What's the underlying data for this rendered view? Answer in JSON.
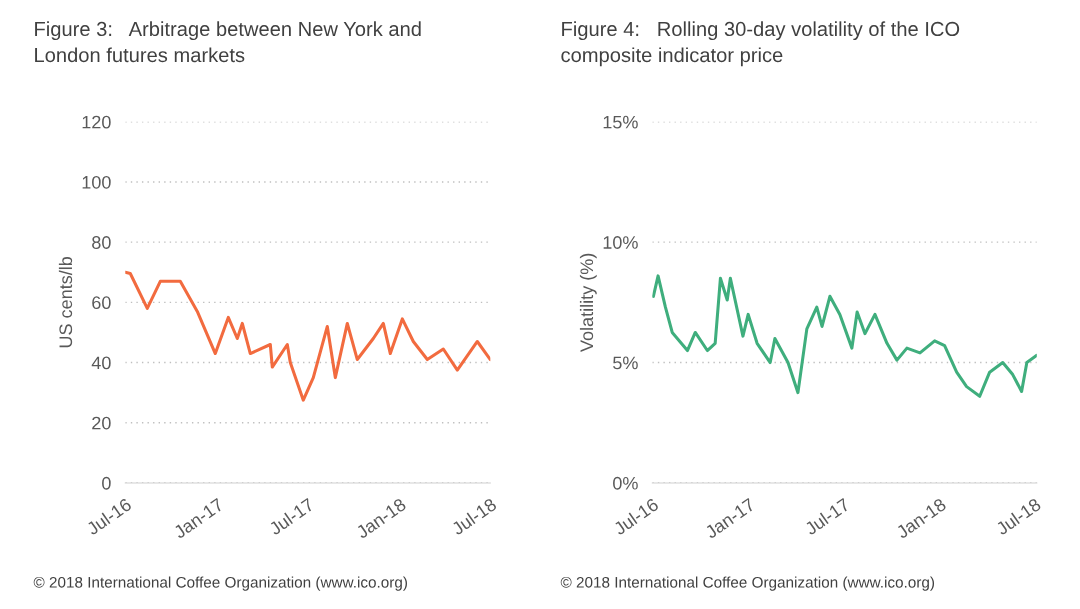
{
  "chart_data": [
    {
      "type": "line",
      "title": "Figure 3:   Arbitrage between New York and London futures markets",
      "ylabel": "US cents/lb",
      "series": [
        {
          "color": "#f26b3f",
          "x": [
            "2016-07-01",
            "2016-07-11",
            "2016-08-14",
            "2016-09-09",
            "2016-10-19",
            "2016-11-22",
            "2016-12-28",
            "2017-01-23",
            "2017-02-10",
            "2017-02-20",
            "2017-03-08",
            "2017-04-17",
            "2017-04-21",
            "2017-05-21",
            "2017-05-27",
            "2017-06-22",
            "2017-07-12",
            "2017-08-09",
            "2017-08-25",
            "2017-09-18",
            "2017-10-08",
            "2017-11-09",
            "2017-11-29",
            "2017-12-13",
            "2018-01-06",
            "2018-01-28",
            "2018-02-25",
            "2018-03-29",
            "2018-04-26",
            "2018-06-05",
            "2018-07-01"
          ],
          "values": [
            70,
            69.6,
            58,
            67,
            67,
            57,
            43,
            55,
            48,
            53,
            43,
            46,
            38.5,
            46,
            40,
            27.5,
            35,
            52,
            35,
            53,
            41,
            48,
            53,
            43,
            54.5,
            47,
            41,
            44.5,
            37.5,
            47,
            41
          ]
        }
      ],
      "xlim": [
        "2016-07-01",
        "2018-07-01"
      ],
      "xticks": [
        {
          "value": "2016-07-01",
          "label": "Jul-16"
        },
        {
          "value": "2017-01-01",
          "label": "Jan-17"
        },
        {
          "value": "2017-07-01",
          "label": "Jul-17"
        },
        {
          "value": "2018-01-01",
          "label": "Jan-18"
        },
        {
          "value": "2018-07-01",
          "label": "Jul-18"
        }
      ],
      "ylim": [
        0,
        120
      ],
      "yticks": [
        0,
        20,
        40,
        60,
        80,
        100,
        120
      ],
      "grid": "y",
      "legend": false,
      "marker": "none",
      "line_style": "solid",
      "annotations": [
        "© 2018 International Coffee Organization (www.ico.org)"
      ]
    },
    {
      "type": "line",
      "title": "Figure 4:   Rolling 30-day volatility of the ICO composite indicator price",
      "ylabel": "Volatility (%)",
      "series": [
        {
          "color": "#3fae7d",
          "x": [
            "2016-07-03",
            "2016-07-12",
            "2016-07-26",
            "2016-08-08",
            "2016-09-06",
            "2016-09-21",
            "2016-10-14",
            "2016-10-29",
            "2016-11-08",
            "2016-11-21",
            "2016-11-27",
            "2016-12-21",
            "2016-12-31",
            "2017-01-17",
            "2017-02-11",
            "2017-02-20",
            "2017-03-17",
            "2017-04-05",
            "2017-04-22",
            "2017-05-11",
            "2017-05-21",
            "2017-06-05",
            "2017-06-24",
            "2017-07-17",
            "2017-07-27",
            "2017-08-11",
            "2017-08-30",
            "2017-09-22",
            "2017-10-11",
            "2017-10-30",
            "2017-11-24",
            "2017-12-22",
            "2018-01-10",
            "2018-02-02",
            "2018-02-21",
            "2018-03-18",
            "2018-04-06",
            "2018-05-01",
            "2018-05-20",
            "2018-06-06",
            "2018-06-16",
            "2018-07-05"
          ],
          "values": [
            7.75,
            8.6,
            7.3,
            6.25,
            5.5,
            6.25,
            5.5,
            5.8,
            8.5,
            7.6,
            8.5,
            6.1,
            7,
            5.8,
            5,
            6,
            5,
            3.75,
            6.4,
            7.3,
            6.5,
            7.75,
            7,
            5.6,
            7.1,
            6.2,
            7,
            5.8,
            5.1,
            5.6,
            5.4,
            5.9,
            5.7,
            4.6,
            4.0,
            3.6,
            4.6,
            5,
            4.5,
            3.8,
            5,
            5.3
          ]
        }
      ],
      "xlim": [
        "2016-07-01",
        "2018-07-05"
      ],
      "xticks": [
        {
          "value": "2016-07-01",
          "label": "Jul-16"
        },
        {
          "value": "2017-01-01",
          "label": "Jan-17"
        },
        {
          "value": "2017-07-01",
          "label": "Jul-17"
        },
        {
          "value": "2018-01-01",
          "label": "Jan-18"
        },
        {
          "value": "2018-07-01",
          "label": "Jul-18"
        }
      ],
      "ylim": [
        0,
        15
      ],
      "yticks": [
        {
          "value": 0,
          "label": "0%"
        },
        {
          "value": 5,
          "label": "5%"
        },
        {
          "value": 10,
          "label": "10%"
        },
        {
          "value": 15,
          "label": "15%"
        }
      ],
      "grid": "y",
      "legend": false,
      "marker": "none",
      "line_style": "solid",
      "annotations": [
        "© 2018 International Coffee Organization (www.ico.org)"
      ]
    }
  ]
}
